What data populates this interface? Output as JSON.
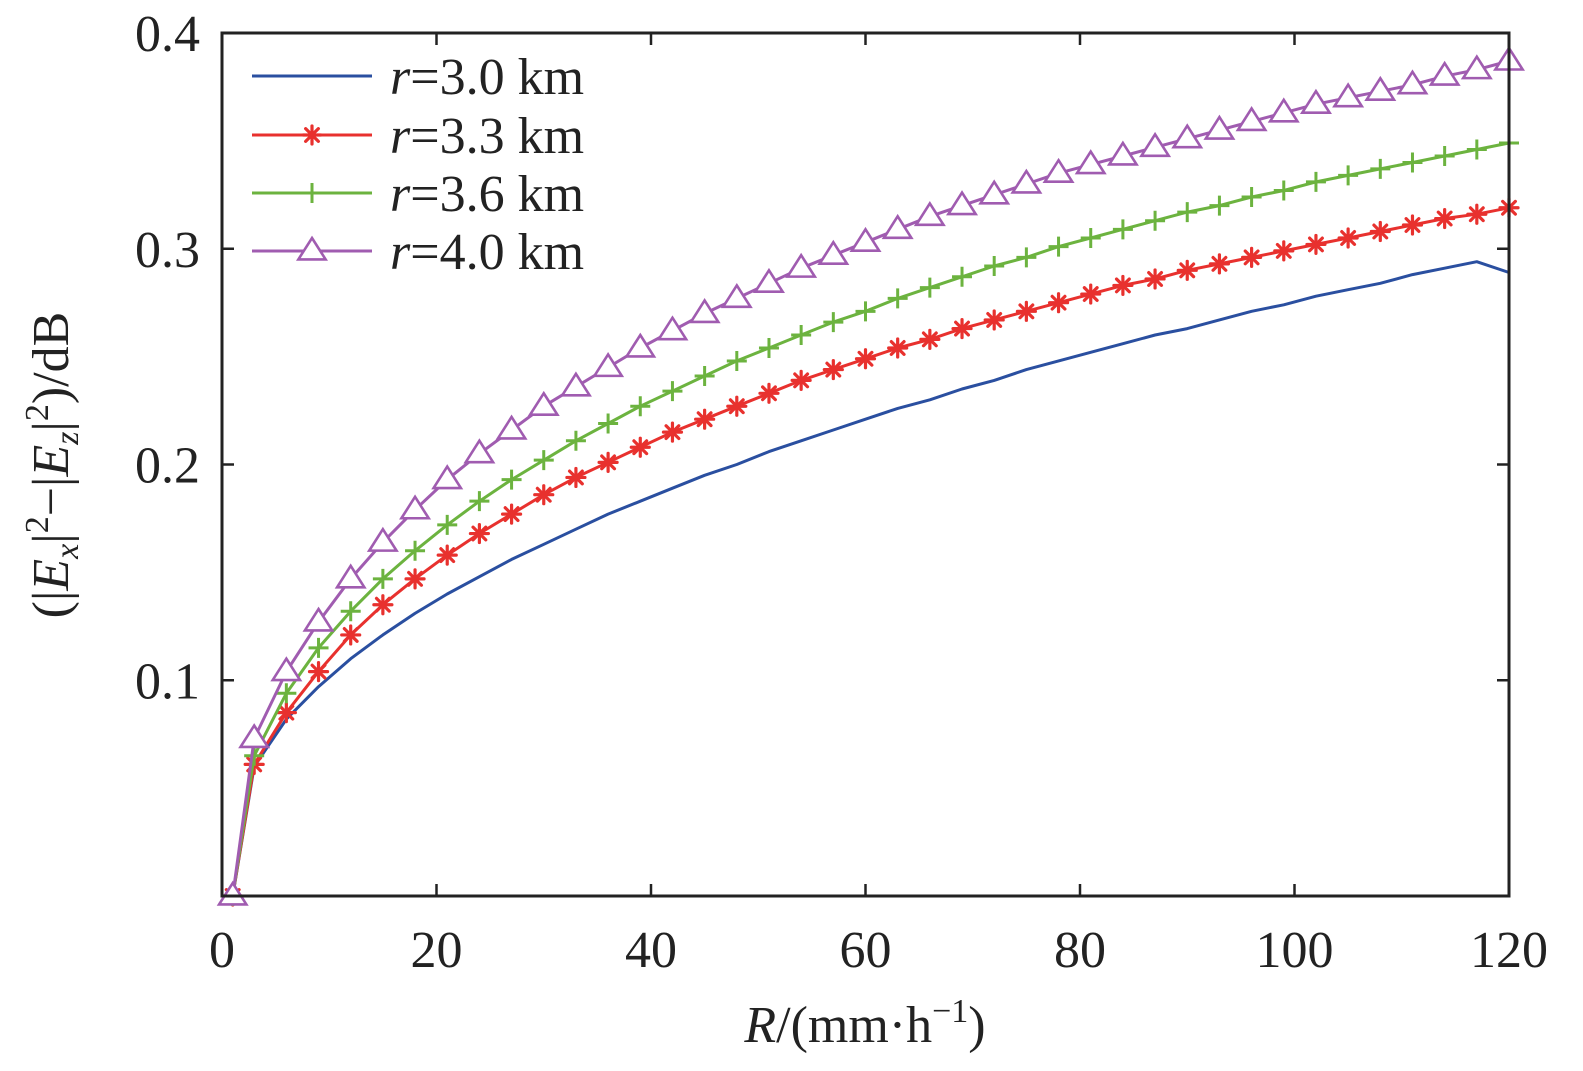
{
  "chart_data": {
    "type": "line",
    "xlabel": "R/(mm·h−1)",
    "ylabel": "(|Ex|2−|Ez|2)/dB",
    "xlim": [
      0,
      120
    ],
    "ylim": [
      0,
      0.4
    ],
    "x_ticks": [
      "0",
      "20",
      "40",
      "60",
      "80",
      "100",
      "120"
    ],
    "y_ticks": [
      "0.1",
      "0.2",
      "0.3",
      "0.4"
    ],
    "grid": false,
    "legend_position": "top-left",
    "x": [
      1,
      3,
      6,
      9,
      12,
      15,
      18,
      21,
      24,
      27,
      30,
      33,
      36,
      39,
      42,
      45,
      48,
      51,
      54,
      57,
      60,
      63,
      66,
      69,
      72,
      75,
      78,
      81,
      84,
      87,
      90,
      93,
      96,
      99,
      102,
      105,
      108,
      111,
      114,
      117,
      120
    ],
    "series": [
      {
        "name": "r=3.0 km",
        "color": "#2a4fa0",
        "marker": "none",
        "values": [
          0.0,
          0.06,
          0.082,
          0.097,
          0.11,
          0.121,
          0.131,
          0.14,
          0.148,
          0.156,
          0.163,
          0.17,
          0.177,
          0.183,
          0.189,
          0.195,
          0.2,
          0.206,
          0.211,
          0.216,
          0.221,
          0.226,
          0.23,
          0.235,
          0.239,
          0.244,
          0.248,
          0.252,
          0.256,
          0.26,
          0.263,
          0.267,
          0.271,
          0.274,
          0.278,
          0.281,
          0.284,
          0.288,
          0.291,
          0.294,
          0.289
        ]
      },
      {
        "name": "r=3.3 km",
        "color": "#e8312e",
        "marker": "asterisk",
        "values": [
          0.0,
          0.061,
          0.085,
          0.104,
          0.121,
          0.135,
          0.147,
          0.158,
          0.168,
          0.177,
          0.186,
          0.194,
          0.201,
          0.208,
          0.215,
          0.221,
          0.227,
          0.233,
          0.239,
          0.244,
          0.249,
          0.254,
          0.258,
          0.263,
          0.267,
          0.271,
          0.275,
          0.279,
          0.283,
          0.286,
          0.29,
          0.293,
          0.296,
          0.299,
          0.302,
          0.305,
          0.308,
          0.311,
          0.314,
          0.316,
          0.319
        ]
      },
      {
        "name": "r=3.6 km",
        "color": "#6cb33f",
        "marker": "plus",
        "values": [
          0.0,
          0.065,
          0.094,
          0.115,
          0.132,
          0.147,
          0.16,
          0.172,
          0.183,
          0.193,
          0.202,
          0.211,
          0.219,
          0.227,
          0.234,
          0.241,
          0.248,
          0.254,
          0.26,
          0.266,
          0.271,
          0.277,
          0.282,
          0.287,
          0.292,
          0.296,
          0.301,
          0.305,
          0.309,
          0.313,
          0.317,
          0.32,
          0.324,
          0.327,
          0.331,
          0.334,
          0.337,
          0.34,
          0.343,
          0.346,
          0.349
        ]
      },
      {
        "name": "r=4.0 km",
        "color": "#a05cb0",
        "marker": "triangle",
        "values": [
          0.0,
          0.073,
          0.104,
          0.127,
          0.147,
          0.164,
          0.179,
          0.193,
          0.205,
          0.216,
          0.227,
          0.236,
          0.245,
          0.254,
          0.262,
          0.27,
          0.277,
          0.284,
          0.291,
          0.297,
          0.303,
          0.309,
          0.315,
          0.32,
          0.325,
          0.33,
          0.335,
          0.339,
          0.343,
          0.347,
          0.351,
          0.355,
          0.359,
          0.363,
          0.367,
          0.37,
          0.373,
          0.376,
          0.38,
          0.383,
          0.387
        ]
      }
    ]
  }
}
